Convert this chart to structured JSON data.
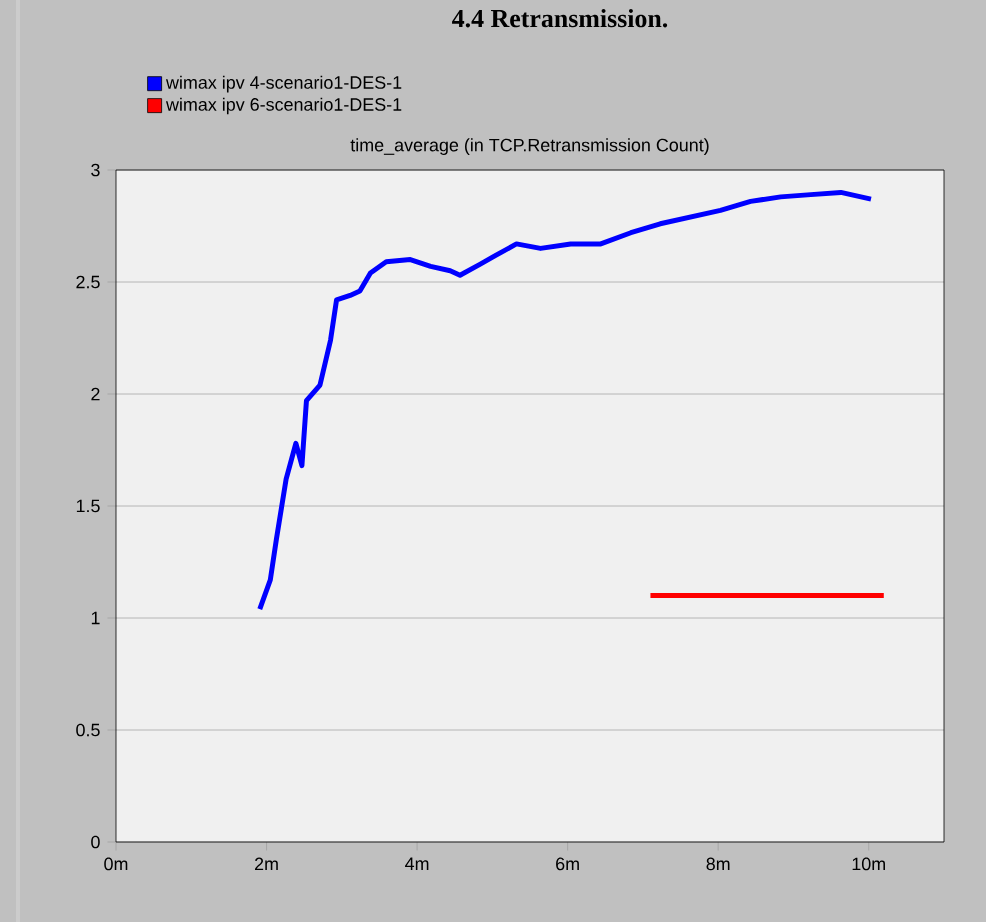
{
  "chart_data": {
    "type": "line",
    "title": "time_average (in TCP.Retransmission Count)",
    "annotations": [
      "4.4 Retransmission."
    ],
    "series": [
      {
        "name": "wimax ipv 4-scenario1-DES-1",
        "color": "#0000ff",
        "x": [
          1.91,
          2.05,
          2.13,
          2.26,
          2.39,
          2.47,
          2.53,
          2.71,
          2.85,
          2.93,
          3.11,
          3.24,
          3.38,
          3.59,
          3.91,
          4.18,
          4.44,
          4.57,
          4.84,
          5.05,
          5.32,
          5.64,
          6.04,
          6.44,
          6.84,
          7.23,
          7.63,
          8.03,
          8.43,
          8.83,
          9.23,
          9.63,
          10.03
        ],
        "values": [
          1.04,
          1.17,
          1.35,
          1.62,
          1.78,
          1.68,
          1.97,
          2.04,
          2.24,
          2.42,
          2.44,
          2.46,
          2.54,
          2.59,
          2.6,
          2.57,
          2.55,
          2.53,
          2.58,
          2.62,
          2.67,
          2.65,
          2.67,
          2.67,
          2.72,
          2.76,
          2.79,
          2.82,
          2.86,
          2.88,
          2.89,
          2.9,
          2.87
        ]
      },
      {
        "name": "wimax ipv 6-scenario1-DES-1",
        "color": "#ff0000",
        "x": [
          7.1,
          8.1,
          9.1,
          10.2
        ],
        "values": [
          1.1,
          1.1,
          1.1,
          1.1
        ]
      }
    ],
    "xlim": [
      0,
      11
    ],
    "xticks": [
      {
        "value": 0,
        "label": "0m"
      },
      {
        "value": 2,
        "label": "2m"
      },
      {
        "value": 4,
        "label": "4m"
      },
      {
        "value": 6,
        "label": "6m"
      },
      {
        "value": 8,
        "label": "8m"
      },
      {
        "value": 10,
        "label": "10m"
      }
    ],
    "ylim": [
      0,
      3
    ],
    "yticks": [
      0,
      0.5,
      1,
      1.5,
      2,
      2.5,
      3
    ],
    "grid": "y",
    "legend": "top left",
    "marker": "none",
    "line_style": "solid"
  }
}
